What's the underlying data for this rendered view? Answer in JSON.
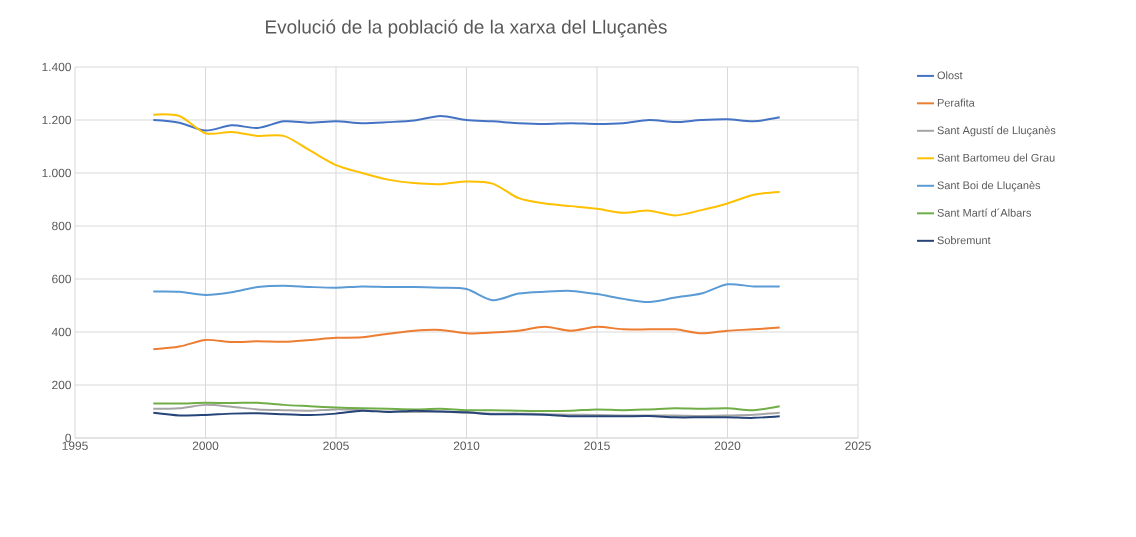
{
  "chart_data": {
    "type": "line",
    "title": "Evolució de la població de la xarxa del Lluçanès",
    "x": [
      1998,
      1999,
      2000,
      2001,
      2002,
      2003,
      2004,
      2005,
      2006,
      2007,
      2008,
      2009,
      2010,
      2011,
      2012,
      2013,
      2014,
      2015,
      2016,
      2017,
      2018,
      2019,
      2020,
      2021,
      2022
    ],
    "series": [
      {
        "name": "Olost",
        "color": "#4472c4",
        "values": [
          1200,
          1190,
          1160,
          1180,
          1170,
          1195,
          1190,
          1195,
          1188,
          1192,
          1198,
          1215,
          1200,
          1195,
          1188,
          1185,
          1188,
          1185,
          1188,
          1200,
          1192,
          1200,
          1203,
          1195,
          1210
        ]
      },
      {
        "name": "Perafita",
        "color": "#ed7d31",
        "values": [
          335,
          345,
          370,
          362,
          365,
          363,
          370,
          378,
          380,
          393,
          405,
          408,
          395,
          398,
          405,
          420,
          405,
          420,
          410,
          410,
          410,
          395,
          405,
          410,
          417
        ]
      },
      {
        "name": "Sant Agustí de Lluçanès",
        "color": "#a5a5a5",
        "values": [
          110,
          112,
          125,
          118,
          108,
          105,
          103,
          108,
          105,
          100,
          98,
          100,
          95,
          92,
          92,
          90,
          88,
          87,
          85,
          85,
          85,
          83,
          85,
          88,
          95
        ]
      },
      {
        "name": "Sant Bartomeu del Grau",
        "color": "#ffc000",
        "values": [
          1220,
          1215,
          1150,
          1155,
          1140,
          1140,
          1085,
          1030,
          1000,
          975,
          962,
          958,
          968,
          960,
          905,
          885,
          875,
          865,
          850,
          858,
          840,
          860,
          885,
          918,
          928
        ]
      },
      {
        "name": "Sant Boi de Lluçanès",
        "color": "#5b9bd5",
        "values": [
          553,
          552,
          540,
          550,
          570,
          575,
          570,
          567,
          572,
          570,
          570,
          567,
          562,
          520,
          545,
          552,
          555,
          543,
          525,
          513,
          530,
          545,
          580,
          572,
          572
        ]
      },
      {
        "name": "Sant Martí d´Albars",
        "color": "#70ad47",
        "values": [
          130,
          130,
          133,
          132,
          133,
          125,
          120,
          115,
          112,
          110,
          108,
          110,
          105,
          105,
          103,
          102,
          103,
          108,
          105,
          108,
          112,
          110,
          112,
          105,
          120
        ]
      },
      {
        "name": "Sobremunt",
        "color": "#264478",
        "values": [
          95,
          85,
          87,
          92,
          93,
          90,
          87,
          92,
          103,
          98,
          103,
          100,
          97,
          90,
          90,
          88,
          82,
          82,
          82,
          83,
          78,
          78,
          78,
          76,
          82
        ]
      }
    ],
    "xlim": [
      1995,
      2025
    ],
    "xticks": [
      1995,
      2000,
      2005,
      2010,
      2015,
      2020,
      2025
    ],
    "ylim": [
      0,
      1400
    ],
    "yticks": [
      0,
      200,
      400,
      600,
      800,
      {
        "value": 1000,
        "label": "1.000"
      },
      {
        "value": 1200,
        "label": "1.200"
      },
      {
        "value": 1400,
        "label": "1.400"
      }
    ],
    "grid": true,
    "legend": "right",
    "marker": "none",
    "line_style": "solid"
  }
}
